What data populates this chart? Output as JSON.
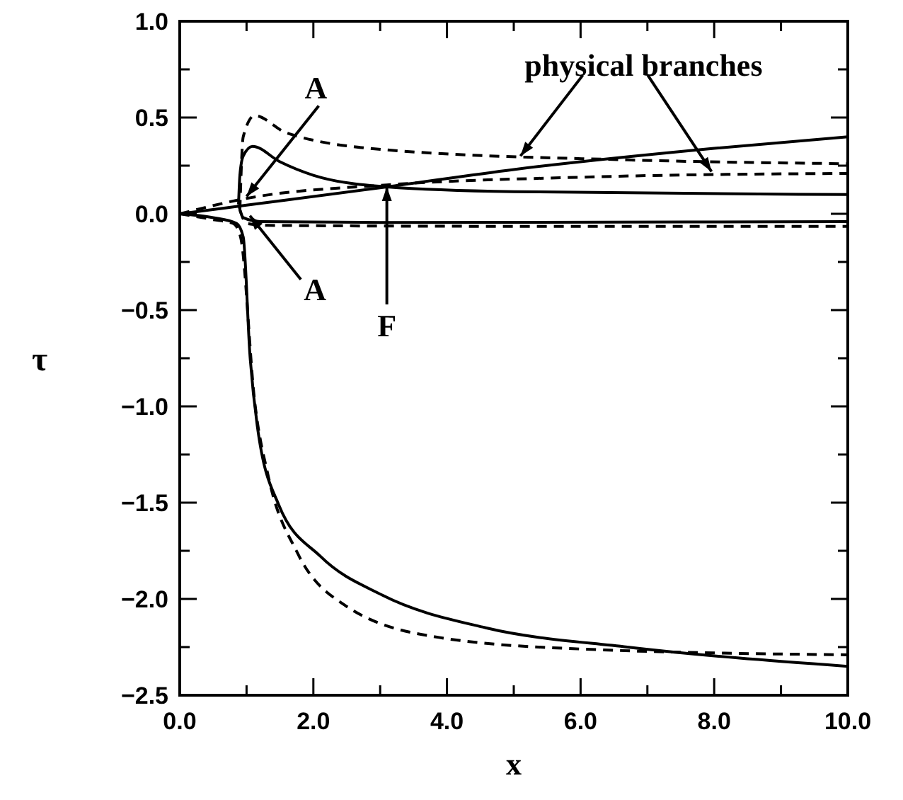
{
  "chart_data": {
    "type": "line",
    "xlabel": "x",
    "ylabel": "τ",
    "xlim": [
      0,
      10
    ],
    "ylim": [
      -2.5,
      1
    ],
    "xticks": [
      {
        "value": 0,
        "label": "0.0"
      },
      {
        "value": 1,
        "label": null
      },
      {
        "value": 2,
        "label": "2.0"
      },
      {
        "value": 3,
        "label": null
      },
      {
        "value": 4,
        "label": "4.0"
      },
      {
        "value": 5,
        "label": null
      },
      {
        "value": 6,
        "label": "6.0"
      },
      {
        "value": 7,
        "label": null
      },
      {
        "value": 8,
        "label": "8.0"
      },
      {
        "value": 9,
        "label": null
      },
      {
        "value": 10,
        "label": "10.0"
      }
    ],
    "yticks": [
      {
        "value": 1,
        "label": "1.0"
      },
      {
        "value": 0.75,
        "label": null
      },
      {
        "value": 0.5,
        "label": "0.5"
      },
      {
        "value": 0.25,
        "label": null
      },
      {
        "value": 0,
        "label": "0.0"
      },
      {
        "value": -0.25,
        "label": null
      },
      {
        "value": -0.5,
        "label": "−0.5"
      },
      {
        "value": -0.75,
        "label": null
      },
      {
        "value": -1,
        "label": "−1.0"
      },
      {
        "value": -1.25,
        "label": null
      },
      {
        "value": -1.5,
        "label": "−1.5"
      },
      {
        "value": -1.75,
        "label": null
      },
      {
        "value": -2,
        "label": "−2.0"
      },
      {
        "value": -2.25,
        "label": null
      },
      {
        "value": -2.5,
        "label": "−2.5"
      }
    ],
    "grid": false,
    "marker": "none",
    "series": [
      {
        "color": "#000000",
        "line_style": "solid",
        "x": [
          0,
          1,
          3.1,
          5,
          8,
          10
        ],
        "values": [
          0,
          0.045,
          0.14,
          0.23,
          0.34,
          0.4
        ]
      },
      {
        "color": "#000000",
        "line_style": "solid",
        "x": [
          0.88,
          0.9,
          0.95,
          1.09,
          1.5,
          2,
          3.1,
          5,
          10
        ],
        "values": [
          0.05,
          0.2,
          0.3,
          0.35,
          0.27,
          0.2,
          0.14,
          0.115,
          0.1
        ]
      },
      {
        "color": "#000000",
        "line_style": "solid",
        "x": [
          0.88,
          0.95,
          1.2,
          3,
          10
        ],
        "values": [
          0.05,
          -0.02,
          -0.04,
          -0.045,
          -0.04
        ]
      },
      {
        "color": "#000000",
        "line_style": "solid",
        "x": [
          0,
          0.5,
          0.85,
          0.95,
          1.05,
          1.16,
          1.48,
          2.11,
          3.03,
          4.58,
          6.7,
          10
        ],
        "values": [
          0,
          -0.02,
          -0.05,
          -0.12,
          -0.73,
          -1.1,
          -1.51,
          -1.78,
          -1.98,
          -2.15,
          -2.25,
          -2.35
        ]
      },
      {
        "color": "#000000",
        "line_style": "dashed",
        "x": [
          0,
          1,
          3.1,
          6,
          10
        ],
        "values": [
          0,
          0.08,
          0.15,
          0.19,
          0.21
        ]
      },
      {
        "color": "#000000",
        "line_style": "dashed",
        "x": [
          0.9,
          0.95,
          1.12,
          1.6,
          3.17,
          6.7,
          10
        ],
        "values": [
          0.02,
          0.4,
          0.51,
          0.42,
          0.33,
          0.28,
          0.26
        ]
      },
      {
        "color": "#000000",
        "line_style": "dashed",
        "x": [
          0.9,
          1,
          1.3,
          5,
          10
        ],
        "values": [
          0.02,
          -0.05,
          -0.06,
          -0.065,
          -0.065
        ]
      },
      {
        "color": "#000000",
        "line_style": "dashed",
        "x": [
          0,
          0.5,
          0.8,
          0.91,
          1.12,
          1.33,
          1.76,
          2.46,
          3.88,
          6,
          10
        ],
        "values": [
          0,
          -0.03,
          -0.05,
          -0.12,
          -0.97,
          -1.37,
          -1.76,
          -2.03,
          -2.2,
          -2.26,
          -2.29
        ]
      }
    ],
    "annotations": [
      {
        "text": "physical branches",
        "x": 5.1,
        "y": 0.3
      },
      {
        "text": "A",
        "x": 1.0,
        "y": 0.09
      },
      {
        "text": "A",
        "x": 1.05,
        "y": -0.01
      },
      {
        "text": "F",
        "x": 3.1,
        "y": 0.14
      }
    ]
  }
}
